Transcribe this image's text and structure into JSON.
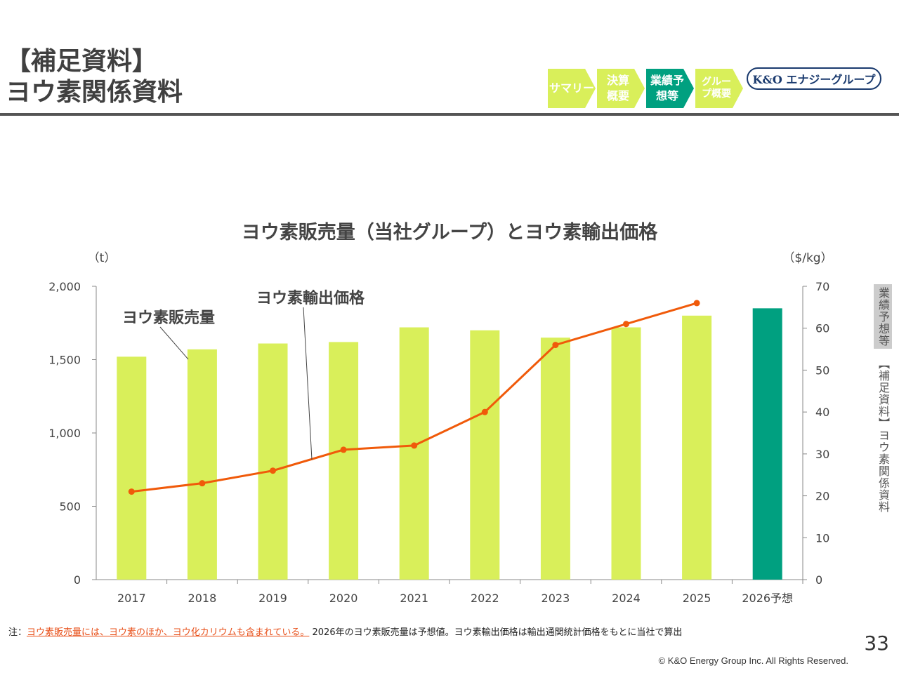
{
  "header": {
    "title_line1": "【補足資料】",
    "title_line2": "ヨウ素関係資料"
  },
  "nav": [
    {
      "label": "サマリー",
      "color": "#d9ef5a"
    },
    {
      "label": "決算概要",
      "color": "#d9ef5a"
    },
    {
      "label": "業績予想等",
      "color": "#00a080",
      "active": true
    },
    {
      "label": "グループ概要",
      "color": "#d9ef5a"
    }
  ],
  "logo": "K&O エナジーグループ",
  "side_tab": {
    "active": "業績予想等",
    "current": "【補足資料】ヨウ素関係資料"
  },
  "chart_data": {
    "type": "bar+line",
    "title": "ヨウ素販売量（当社グループ）とヨウ素輸出価格",
    "categories": [
      "2017",
      "2018",
      "2019",
      "2020",
      "2021",
      "2022",
      "2023",
      "2024",
      "2025",
      "2026予想"
    ],
    "series": [
      {
        "name": "ヨウ素販売量",
        "type": "bar",
        "axis": "left",
        "values": [
          1520,
          1570,
          1610,
          1620,
          1720,
          1700,
          1650,
          1720,
          1800,
          1850
        ],
        "color": "#d9ef5a",
        "forecast_color": "#00a080"
      },
      {
        "name": "ヨウ素輸出価格",
        "type": "line",
        "axis": "right",
        "values": [
          21,
          23,
          26,
          31,
          32,
          40,
          56,
          61,
          66,
          null
        ],
        "color": "#f05a0a"
      }
    ],
    "ylabel_left": "（t）",
    "ylabel_right": "（$/kg）",
    "ylim_left": [
      0,
      2000
    ],
    "yticks_left": [
      "0",
      "500",
      "1,000",
      "1,500",
      "2,000"
    ],
    "ylim_right": [
      0,
      70
    ],
    "yticks_right": [
      "0",
      "10",
      "20",
      "30",
      "40",
      "50",
      "60",
      "70"
    ],
    "grid": false
  },
  "footer": {
    "note_prefix": "注：",
    "note_highlight": "ヨウ素販売量には、ヨウ素のほか、ヨウ化カリウムも含まれている。",
    "note_rest": "2026年のヨウ素販売量は予想値。ヨウ素輸出価格は輸出通関統計価格をもとに当社で算出",
    "copyright": "© K&O Energy Group Inc. All Rights Reserved.",
    "page": "33"
  }
}
